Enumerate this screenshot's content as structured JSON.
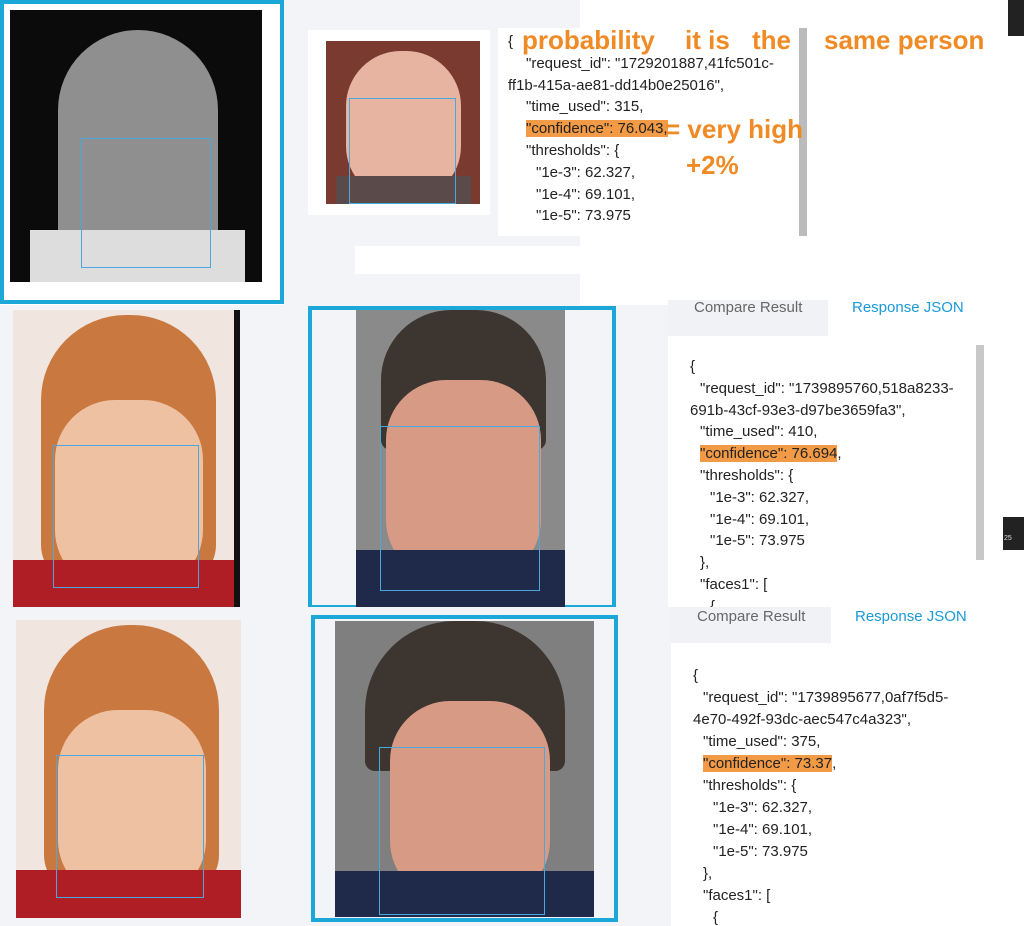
{
  "annotation": {
    "words": [
      "probability",
      "it is",
      "the",
      "same person"
    ],
    "verdict": "= very high",
    "delta": "+2%"
  },
  "panels": [
    {
      "lines": [
        "{",
        "\"request_id\": \"1729201887,41fc501c-",
        "ff1b-415a-ae81-dd14b0e25016\",",
        "\"time_used\": 315,",
        {
          "highlight": "\"confidence\": 76.043,"
        },
        "\"thresholds\": {",
        "\"1e-3\": 62.327,",
        "\"1e-4\": 69.101,",
        "\"1e-5\": 73.975"
      ]
    },
    {
      "tabs": [
        "Compare Result",
        "Response JSON"
      ],
      "lines": [
        "{",
        "\"request_id\": \"1739895760,518a8233-",
        "691b-43cf-93e3-d97be3659fa3\",",
        "\"time_used\": 410,",
        {
          "highlight": "\"confidence\": 76.694",
          "text": ","
        },
        "\"thresholds\": {",
        "\"1e-3\": 62.327,",
        "\"1e-4\": 69.101,",
        "\"1e-5\": 73.975",
        "},",
        "\"faces1\": [",
        "{"
      ]
    },
    {
      "tabs": [
        "Compare Result",
        "Response JSON"
      ],
      "lines": [
        "{",
        "\"request_id\": \"1739895677,0af7f5d5-",
        "4e70-492f-93dc-aec547c4a323\",",
        "\"time_used\": 375,",
        {
          "highlight": "\"confidence\": 73.37",
          "text": ","
        },
        "\"thresholds\": {",
        "\"1e-3\": 62.327,",
        "\"1e-4\": 69.101,",
        "\"1e-5\": 73.975",
        "},",
        "\"faces1\": [",
        "{"
      ]
    }
  ],
  "side_label": "25"
}
